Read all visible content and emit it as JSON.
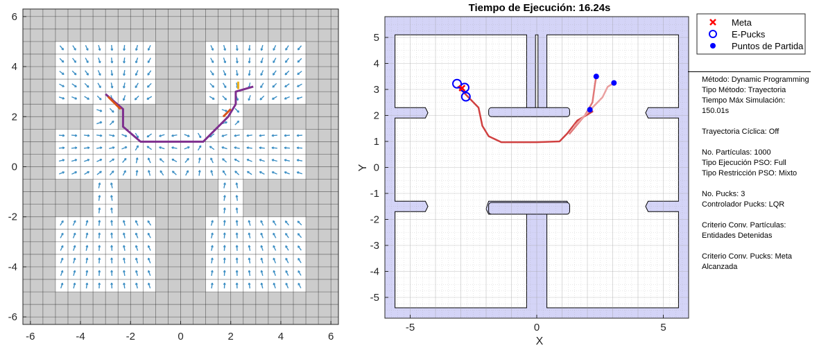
{
  "chart_data": [
    {
      "type": "quiver",
      "title": "",
      "xlabel": "",
      "ylabel": "",
      "xlim": [
        -6.3,
        6.3
      ],
      "ylim": [
        -6.3,
        6.3
      ],
      "xticks": [
        "-6",
        "-4",
        "-2",
        "0",
        "2",
        "4",
        "6"
      ],
      "yticks": [
        "-6",
        "-4",
        "-2",
        "0",
        "2",
        "4",
        "6"
      ],
      "grid": true,
      "grid_step": 0.5,
      "obstacle_color": "#cccccc",
      "free_color": "#ffffff",
      "arrow_color": "#3d8fc4",
      "free_regions": [
        {
          "x": [
            -5,
            -1
          ],
          "y": [
            2.5,
            5
          ]
        },
        {
          "x": [
            -3.5,
            -2.5
          ],
          "y": [
            1.5,
            2.5
          ]
        },
        {
          "x": [
            -5,
            5
          ],
          "y": [
            -0.5,
            1.5
          ]
        },
        {
          "x": [
            -3.5,
            -2.5
          ],
          "y": [
            -2,
            -0.5
          ]
        },
        {
          "x": [
            -5,
            -1
          ],
          "y": [
            -5,
            -2
          ]
        },
        {
          "x": [
            1,
            5
          ],
          "y": [
            2.5,
            5
          ]
        },
        {
          "x": [
            1.5,
            2.5
          ],
          "y": [
            1.5,
            2.5
          ]
        },
        {
          "x": [
            1.5,
            2.5
          ],
          "y": [
            -2,
            -0.5
          ]
        },
        {
          "x": [
            1,
            5
          ],
          "y": [
            -5,
            -2
          ]
        }
      ],
      "series": [
        {
          "name": "",
          "color": "#7e2f8e",
          "x": [
            -3.0,
            -2.3,
            -2.3,
            -1.6,
            0.9,
            1.9,
            2.2,
            2.2,
            2.9
          ],
          "y": [
            2.9,
            2.3,
            1.6,
            1.0,
            1.0,
            2.0,
            2.5,
            3.0,
            3.2
          ]
        },
        {
          "name": "",
          "color": "#d95319",
          "x": [
            -2.9,
            -2.4
          ],
          "y": [
            2.8,
            2.3
          ]
        },
        {
          "name": "",
          "color": "#edb120",
          "x": [
            2.3,
            2.3
          ],
          "y": [
            3.1,
            3.4
          ]
        },
        {
          "name": "",
          "color": "#d95319",
          "x": [
            1.7,
            2.0
          ],
          "y": [
            2.0,
            2.3
          ]
        }
      ]
    },
    {
      "type": "line",
      "title": "Tiempo de Ejecución: 16.24s",
      "xlabel": "X",
      "ylabel": "Y",
      "xlim": [
        -6,
        6
      ],
      "ylim": [
        -5.8,
        5.8
      ],
      "xticks": [
        "-5",
        "0",
        "5"
      ],
      "yticks": [
        "5",
        "4",
        "3",
        "2",
        "1",
        "0",
        "-1",
        "-2",
        "-3",
        "-4",
        "-5"
      ],
      "grid": true,
      "grid_minor": true,
      "background_color": "#d4d4f7",
      "free_color": "#ffffff",
      "legend_position": "outside-top-right",
      "legend": [
        {
          "label": "Meta",
          "marker": "x",
          "color": "#ff0000"
        },
        {
          "label": "E-Pucks",
          "marker": "circle-open",
          "color": "#0000ff"
        },
        {
          "label": "Puntos de Partida",
          "marker": "circle-filled",
          "color": "#0000ff"
        }
      ],
      "meta": {
        "x": -2.95,
        "y": 3.05
      },
      "e_pucks": [
        {
          "x": -3.15,
          "y": 3.22
        },
        {
          "x": -2.85,
          "y": 3.07
        },
        {
          "x": -2.8,
          "y": 2.72
        }
      ],
      "puntos_de_partida": [
        {
          "x": 2.35,
          "y": 3.5
        },
        {
          "x": 3.05,
          "y": 3.25
        },
        {
          "x": 2.1,
          "y": 2.22
        }
      ],
      "trajectories": [
        {
          "color": "#d04040",
          "x": [
            -3.1,
            -2.7,
            -2.3,
            -2.15,
            -1.9,
            -1.4,
            0.0,
            0.9,
            1.2,
            1.6,
            2.2
          ],
          "y": [
            3.1,
            2.7,
            2.3,
            1.6,
            1.2,
            0.97,
            0.97,
            1.0,
            1.3,
            1.8,
            2.15
          ]
        },
        {
          "color": "#e07878",
          "x": [
            1.3,
            1.9,
            2.2,
            2.3,
            2.35
          ],
          "y": [
            1.3,
            2.0,
            2.5,
            3.2,
            3.5
          ]
        },
        {
          "color": "#eaa0a0",
          "x": [
            1.5,
            2.1,
            2.6,
            2.8,
            3.05
          ],
          "y": [
            1.6,
            2.2,
            2.7,
            3.1,
            3.25
          ]
        }
      ]
    }
  ],
  "info": {
    "lines": [
      "Método: Dynamic Programming",
      "Tipo Método: Trayectoria",
      "Tiempo Máx Simulación: 150.01s",
      "",
      "Trayectoria Cíclica: Off",
      "",
      "No. Partículas: 1000",
      "Tipo Ejecución PSO: Full",
      "Tipo Restricción PSO: Mixto",
      "",
      "No. Pucks: 3",
      "Controlador Pucks: LQR",
      "",
      "Criterio Conv. Partículas: Entidades Detenidas",
      "",
      "Criterio Conv. Pucks: Meta Alcanzada"
    ]
  }
}
